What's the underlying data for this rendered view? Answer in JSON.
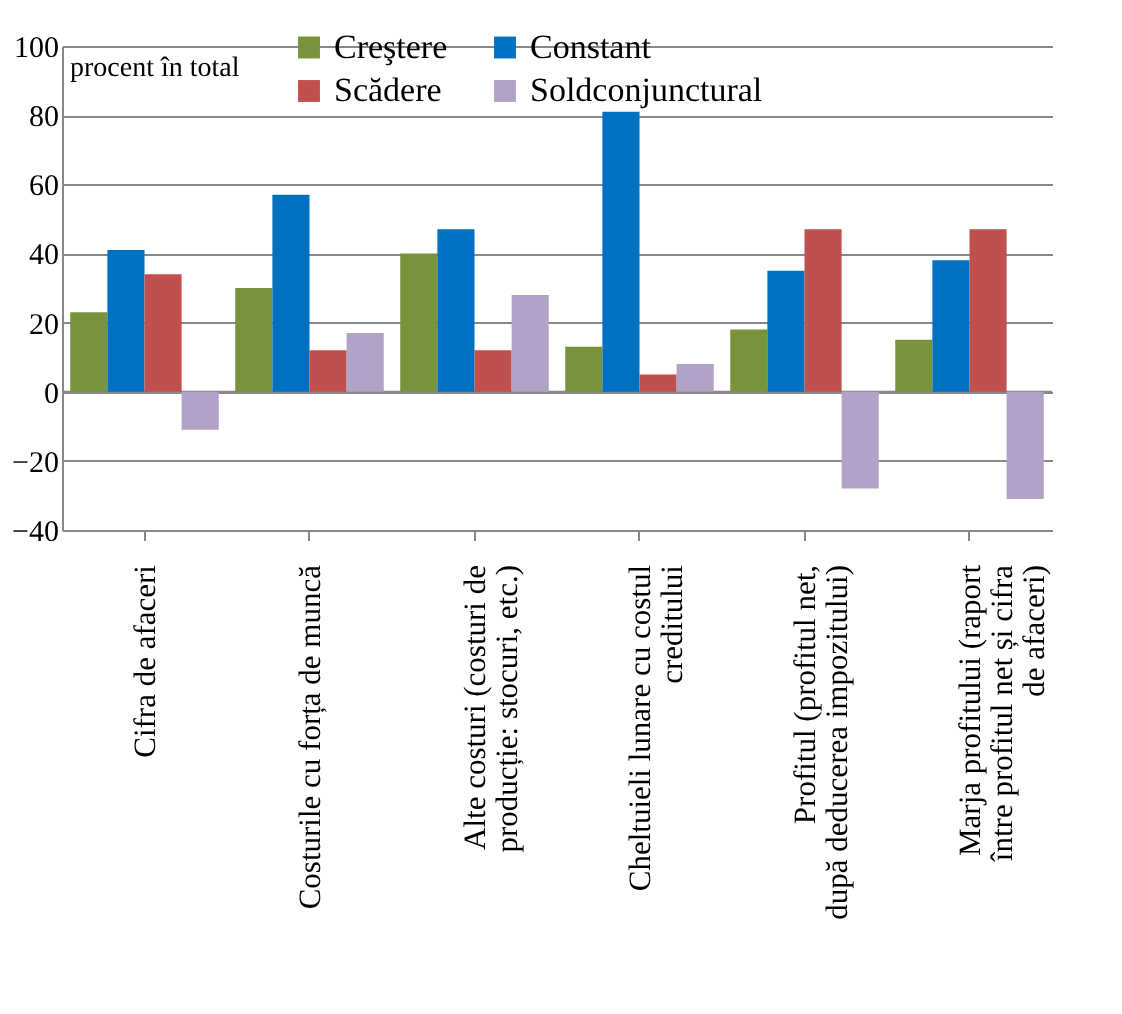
{
  "chart_data": {
    "type": "bar",
    "categories": [
      "Cifra de afaceri",
      "Costurile cu forța de muncă",
      "Alte costuri (costuri de producție: stocuri, etc.)",
      "Cheltuieli lunare cu costul creditului",
      "Profitul (profitul net, după deducerea impozitului)",
      "Marja profitului (raport între profitul net și cifra de afaceri)"
    ],
    "series": [
      {
        "name": "Creştere",
        "color": "#77933c",
        "values": [
          23,
          30,
          40,
          13,
          18,
          15
        ]
      },
      {
        "name": "Constant",
        "color": "#0070c0",
        "values": [
          41,
          57,
          47,
          81,
          35,
          38
        ]
      },
      {
        "name": "Scădere",
        "color": "#c0504d",
        "values": [
          34,
          12,
          12,
          5,
          47,
          47
        ]
      },
      {
        "name": "Soldconjunctural",
        "color": "#b3a2c7",
        "values": [
          -11,
          17,
          28,
          8,
          -28,
          -31
        ]
      }
    ],
    "ylim": [
      -40,
      100
    ],
    "yticks": [
      -40,
      -20,
      0,
      20,
      40,
      60,
      80,
      100
    ],
    "grid": "y",
    "legend": "top",
    "annotations": [
      "procent în total"
    ]
  }
}
